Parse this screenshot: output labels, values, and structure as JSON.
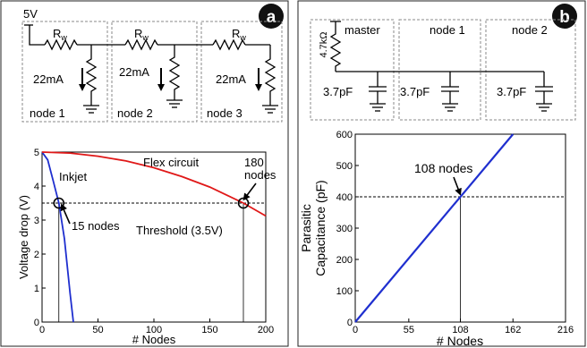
{
  "colors": {
    "inkjet": "#1f2fcf",
    "flex": "#e01818",
    "capacitance": "#1f2fcf",
    "badge": "#111111",
    "dashed_box": "#8a8a8a"
  },
  "panel_a": {
    "badge": "a",
    "circuit": {
      "supply_label": "5V",
      "resistor_label": "R",
      "resistor_subscript": "w",
      "current_labels": [
        "22mA",
        "22mA",
        "22mA"
      ],
      "node_labels": [
        "node 1",
        "node 2",
        "node 3"
      ]
    },
    "chart_data": {
      "type": "line",
      "xlabel": "# Nodes",
      "ylabel": "Voltage drop (V)",
      "xlim": [
        0,
        200
      ],
      "ylim": [
        0,
        5
      ],
      "x_ticks": [
        "0",
        "50",
        "100",
        "150",
        "200"
      ],
      "y_ticks": [
        "0",
        "1",
        "2",
        "3",
        "4",
        "5"
      ],
      "grid": false,
      "series": [
        {
          "name": "Inkjet",
          "x": [
            0,
            5,
            10,
            15,
            20,
            25,
            28
          ],
          "y": [
            5.0,
            4.77,
            4.15,
            3.5,
            2.45,
            0.85,
            0.0
          ]
        },
        {
          "name": "Flex circuit",
          "x": [
            0,
            25,
            50,
            75,
            100,
            125,
            150,
            180,
            200
          ],
          "y": [
            5.0,
            4.97,
            4.88,
            4.74,
            4.54,
            4.28,
            3.97,
            3.5,
            3.12
          ]
        }
      ],
      "threshold": {
        "label": "Threshold (3.5V)",
        "value": 3.5
      },
      "annotations": [
        {
          "label": "15 nodes",
          "x": 15,
          "y": 3.5
        },
        {
          "label": "180 nodes",
          "x": 180,
          "y": 3.5
        }
      ]
    }
  },
  "panel_b": {
    "badge": "b",
    "circuit": {
      "resistor_label": "4.7kΩ",
      "column_labels": [
        "master",
        "node 1",
        "node 2"
      ],
      "capacitor_labels": [
        "3.7pF",
        "3.7pF",
        "3.7pF"
      ]
    },
    "chart_data": {
      "type": "line",
      "xlabel": "# Nodes",
      "ylabel_lines": [
        "Parasitic",
        "Capacitance (pF)"
      ],
      "xlim": [
        0,
        216
      ],
      "ylim": [
        0,
        600
      ],
      "x_ticks": [
        "0",
        "55",
        "108",
        "162",
        "216"
      ],
      "y_ticks": [
        "0",
        "100",
        "200",
        "300",
        "400",
        "500",
        "600"
      ],
      "grid": false,
      "series": [
        {
          "x": [
            0,
            162
          ],
          "y": [
            0,
            600
          ]
        }
      ],
      "threshold": {
        "value": 400
      },
      "annotations": [
        {
          "label": "108 nodes",
          "x": 108,
          "y": 400
        }
      ]
    }
  }
}
